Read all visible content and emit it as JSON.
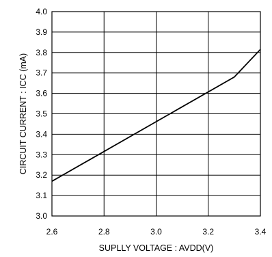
{
  "chart_data": {
    "type": "line",
    "xlabel": "SUPLLY VOLTAGE : AVDD(V)",
    "ylabel": "CIRCUIT CURRENT : ICC (mA)",
    "xlim": [
      2.6,
      3.4
    ],
    "ylim": [
      3.0,
      4.0
    ],
    "x_ticks": [
      "2.6",
      "2.8",
      "3.0",
      "3.2",
      "3.4"
    ],
    "y_ticks": [
      "3.0",
      "3.1",
      "3.2",
      "3.3",
      "3.4",
      "3.5",
      "3.6",
      "3.7",
      "3.8",
      "3.9",
      "4.0"
    ],
    "grid": true,
    "series": [
      {
        "x": [
          2.6,
          3.3,
          3.4
        ],
        "y": [
          3.17,
          3.68,
          3.815
        ]
      }
    ]
  }
}
